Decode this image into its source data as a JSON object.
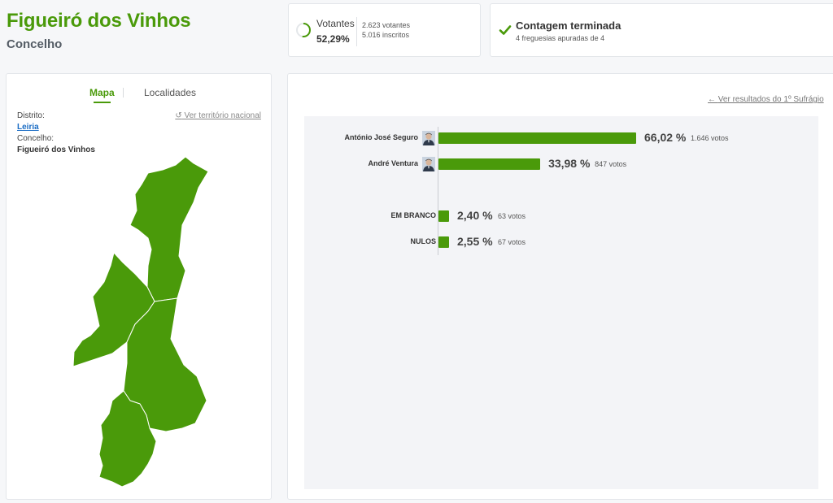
{
  "header": {
    "title": "Figueiró dos Vinhos",
    "subtitle": "Concelho"
  },
  "votantes": {
    "label": "Votantes",
    "pct": "52,29%",
    "pct_value": 52.29,
    "votes": "2.623 votantes",
    "inscritos": "5.016 inscritos"
  },
  "contagem": {
    "title": "Contagem terminada",
    "sub": "4 freguesias apuradas de 4"
  },
  "map_panel": {
    "tabs": [
      "Mapa",
      "Localidades"
    ],
    "distrito_label": "Distrito:",
    "distrito_value": "Leiria",
    "concelho_label": "Concelho:",
    "concelho_value": "Figueiró dos Vinhos",
    "national_link": "Ver território nacional"
  },
  "results": {
    "prev_link": "Ver resultados do 1º Sufrágio",
    "bar_color": "#4a9a0a",
    "rows": [
      {
        "name": "António José Seguro",
        "pct": "66,02 %",
        "value": 66.02,
        "votes": "1.646 votos",
        "avatar": true
      },
      {
        "name": "André Ventura",
        "pct": "33,98 %",
        "value": 33.98,
        "votes": "847 votos",
        "avatar": true
      },
      {
        "name": "EM BRANCO",
        "pct": "2,40 %",
        "value": 2.4,
        "votes": "63 votos",
        "avatar": false
      },
      {
        "name": "NULOS",
        "pct": "2,55 %",
        "value": 2.55,
        "votes": "67 votos",
        "avatar": false
      }
    ]
  }
}
